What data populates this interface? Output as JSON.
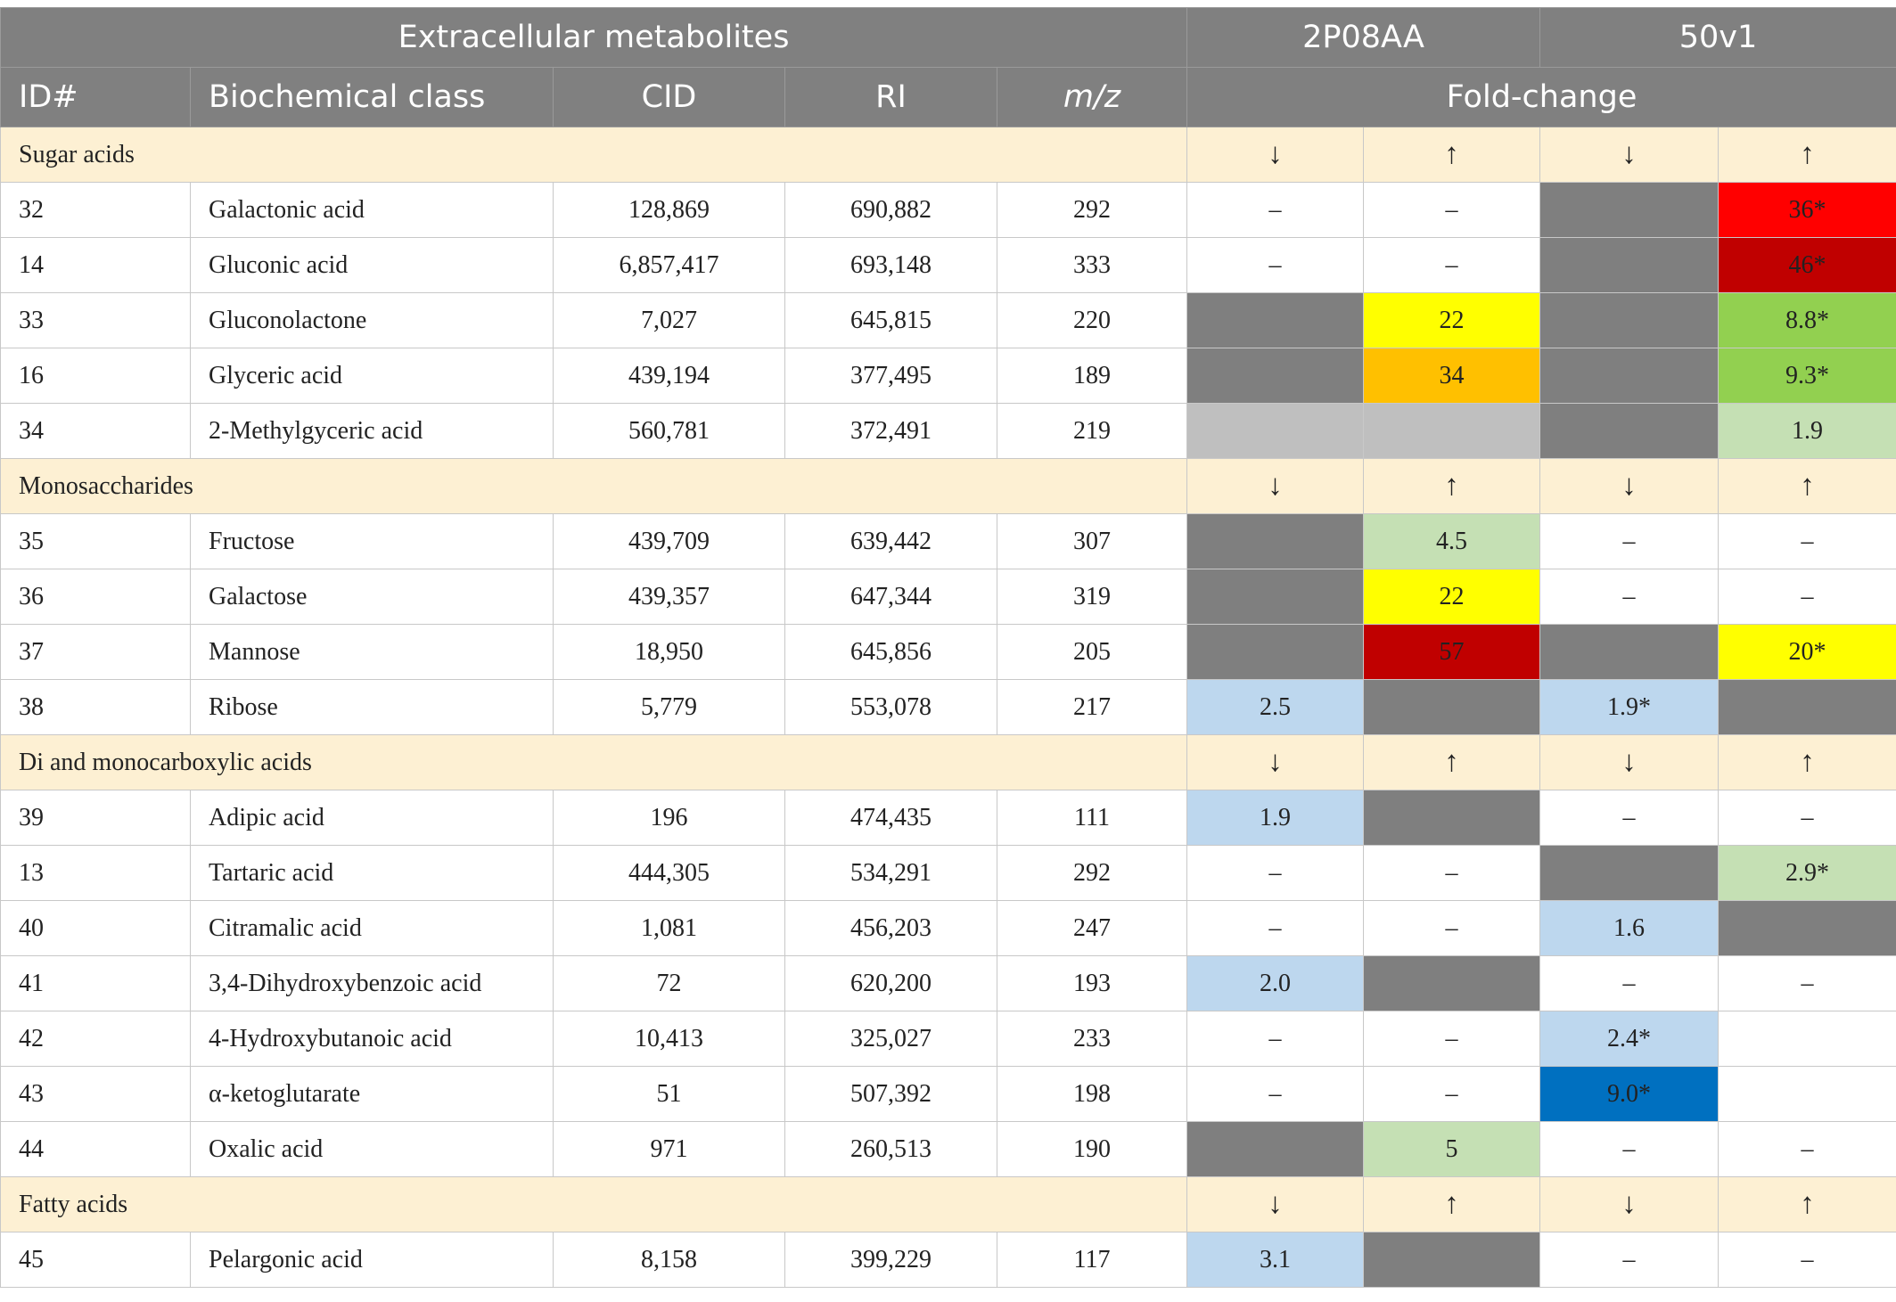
{
  "header": {
    "title": "Extracellular metabolites",
    "strain_a": "2P08AA",
    "strain_b": "50v1",
    "col_id": "ID#",
    "col_class": "Biochemical class",
    "col_cid": "CID",
    "col_ri": "RI",
    "col_mz": "m/z",
    "col_fold": "Fold-change"
  },
  "arrows": {
    "down": "↓",
    "up": "↑"
  },
  "colors": {
    "white": "#ffffff",
    "dark_gray": "#7f7f7f",
    "light_gray": "#bfbfbf",
    "yellow": "#ffff00",
    "orange": "#ffc000",
    "red": "#ff0000",
    "dark_red": "#c00000",
    "green": "#92d050",
    "light_green": "#c5e0b4",
    "light_blue": "#bdd7ee",
    "blue": "#0070c0",
    "category_bg": "#fdf0d3"
  },
  "categories": [
    {
      "label": "Sugar acids",
      "rows": [
        {
          "id": "32",
          "name": "Galactonic acid",
          "cid": "128,869",
          "ri": "690,882",
          "mz": "292",
          "fc": [
            {
              "text": "–",
              "color": "white"
            },
            {
              "text": "–",
              "color": "white"
            },
            {
              "text": "",
              "color": "dark_gray"
            },
            {
              "text": "36*",
              "color": "red"
            }
          ]
        },
        {
          "id": "14",
          "name": "Gluconic acid",
          "cid": "6,857,417",
          "ri": "693,148",
          "mz": "333",
          "fc": [
            {
              "text": "–",
              "color": "white"
            },
            {
              "text": "–",
              "color": "white"
            },
            {
              "text": "",
              "color": "dark_gray"
            },
            {
              "text": "46*",
              "color": "dark_red"
            }
          ]
        },
        {
          "id": "33",
          "name": "Gluconolactone",
          "cid": "7,027",
          "ri": "645,815",
          "mz": "220",
          "fc": [
            {
              "text": "",
              "color": "dark_gray"
            },
            {
              "text": "22",
              "color": "yellow"
            },
            {
              "text": "",
              "color": "dark_gray"
            },
            {
              "text": "8.8*",
              "color": "green"
            }
          ]
        },
        {
          "id": "16",
          "name": "Glyceric acid",
          "cid": "439,194",
          "ri": "377,495",
          "mz": "189",
          "fc": [
            {
              "text": "",
              "color": "dark_gray"
            },
            {
              "text": "34",
              "color": "orange"
            },
            {
              "text": "",
              "color": "dark_gray"
            },
            {
              "text": "9.3*",
              "color": "green"
            }
          ]
        },
        {
          "id": "34",
          "name": "2-Methylgyceric acid",
          "cid": "560,781",
          "ri": "372,491",
          "mz": "219",
          "fc": [
            {
              "text": "",
              "color": "light_gray"
            },
            {
              "text": "",
              "color": "light_gray"
            },
            {
              "text": "",
              "color": "dark_gray"
            },
            {
              "text": "1.9",
              "color": "light_green"
            }
          ]
        }
      ]
    },
    {
      "label": "Monosaccharides",
      "rows": [
        {
          "id": "35",
          "name": "Fructose",
          "cid": "439,709",
          "ri": "639,442",
          "mz": "307",
          "fc": [
            {
              "text": "",
              "color": "dark_gray"
            },
            {
              "text": "4.5",
              "color": "light_green"
            },
            {
              "text": "–",
              "color": "white"
            },
            {
              "text": "–",
              "color": "white"
            }
          ]
        },
        {
          "id": "36",
          "name": "Galactose",
          "cid": "439,357",
          "ri": "647,344",
          "mz": "319",
          "fc": [
            {
              "text": "",
              "color": "dark_gray"
            },
            {
              "text": "22",
              "color": "yellow"
            },
            {
              "text": "–",
              "color": "white"
            },
            {
              "text": "–",
              "color": "white"
            }
          ]
        },
        {
          "id": "37",
          "name": "Mannose",
          "cid": "18,950",
          "ri": "645,856",
          "mz": "205",
          "fc": [
            {
              "text": "",
              "color": "dark_gray"
            },
            {
              "text": "57",
              "color": "dark_red"
            },
            {
              "text": "",
              "color": "dark_gray"
            },
            {
              "text": "20*",
              "color": "yellow"
            }
          ]
        },
        {
          "id": "38",
          "name": "Ribose",
          "cid": "5,779",
          "ri": "553,078",
          "mz": "217",
          "fc": [
            {
              "text": "2.5",
              "color": "light_blue"
            },
            {
              "text": "",
              "color": "dark_gray"
            },
            {
              "text": "1.9*",
              "color": "light_blue"
            },
            {
              "text": "",
              "color": "dark_gray"
            }
          ]
        }
      ]
    },
    {
      "label": "Di and monocarboxylic acids",
      "rows": [
        {
          "id": "39",
          "name": "Adipic acid",
          "cid": "196",
          "ri": "474,435",
          "mz": "111",
          "fc": [
            {
              "text": "1.9",
              "color": "light_blue"
            },
            {
              "text": "",
              "color": "dark_gray"
            },
            {
              "text": "–",
              "color": "white"
            },
            {
              "text": "–",
              "color": "white"
            }
          ]
        },
        {
          "id": "13",
          "name": "Tartaric acid",
          "cid": "444,305",
          "ri": "534,291",
          "mz": "292",
          "fc": [
            {
              "text": "–",
              "color": "white"
            },
            {
              "text": "–",
              "color": "white"
            },
            {
              "text": "",
              "color": "dark_gray"
            },
            {
              "text": "2.9*",
              "color": "light_green"
            }
          ]
        },
        {
          "id": "40",
          "name": "Citramalic acid",
          "cid": "1,081",
          "ri": "456,203",
          "mz": "247",
          "fc": [
            {
              "text": "–",
              "color": "white"
            },
            {
              "text": "–",
              "color": "white"
            },
            {
              "text": "1.6",
              "color": "light_blue"
            },
            {
              "text": "",
              "color": "dark_gray"
            }
          ]
        },
        {
          "id": "41",
          "name": "3,4-Dihydroxybenzoic acid",
          "cid": "72",
          "ri": "620,200",
          "mz": "193",
          "fc": [
            {
              "text": "2.0",
              "color": "light_blue"
            },
            {
              "text": "",
              "color": "dark_gray"
            },
            {
              "text": "–",
              "color": "white"
            },
            {
              "text": "–",
              "color": "white"
            }
          ]
        },
        {
          "id": "42",
          "name": "4-Hydroxybutanoic acid",
          "cid": "10,413",
          "ri": "325,027",
          "mz": "233",
          "fc": [
            {
              "text": "–",
              "color": "white"
            },
            {
              "text": "–",
              "color": "white"
            },
            {
              "text": "2.4*",
              "color": "light_blue"
            },
            {
              "text": "",
              "color": "white"
            }
          ]
        },
        {
          "id": "43",
          "name": "α-ketoglutarate",
          "cid": "51",
          "ri": "507,392",
          "mz": "198",
          "fc": [
            {
              "text": "–",
              "color": "white"
            },
            {
              "text": "–",
              "color": "white"
            },
            {
              "text": "9.0*",
              "color": "blue"
            },
            {
              "text": "",
              "color": "white"
            }
          ]
        },
        {
          "id": "44",
          "name": "Oxalic acid",
          "cid": "971",
          "ri": "260,513",
          "mz": "190",
          "fc": [
            {
              "text": "",
              "color": "dark_gray"
            },
            {
              "text": "5",
              "color": "light_green"
            },
            {
              "text": "–",
              "color": "white"
            },
            {
              "text": "–",
              "color": "white"
            }
          ]
        }
      ]
    },
    {
      "label": "Fatty acids",
      "rows": [
        {
          "id": "45",
          "name": "Pelargonic acid",
          "cid": "8,158",
          "ri": "399,229",
          "mz": "117",
          "fc": [
            {
              "text": "3.1",
              "color": "light_blue"
            },
            {
              "text": "",
              "color": "dark_gray"
            },
            {
              "text": "–",
              "color": "white"
            },
            {
              "text": "–",
              "color": "white"
            }
          ]
        }
      ]
    }
  ]
}
